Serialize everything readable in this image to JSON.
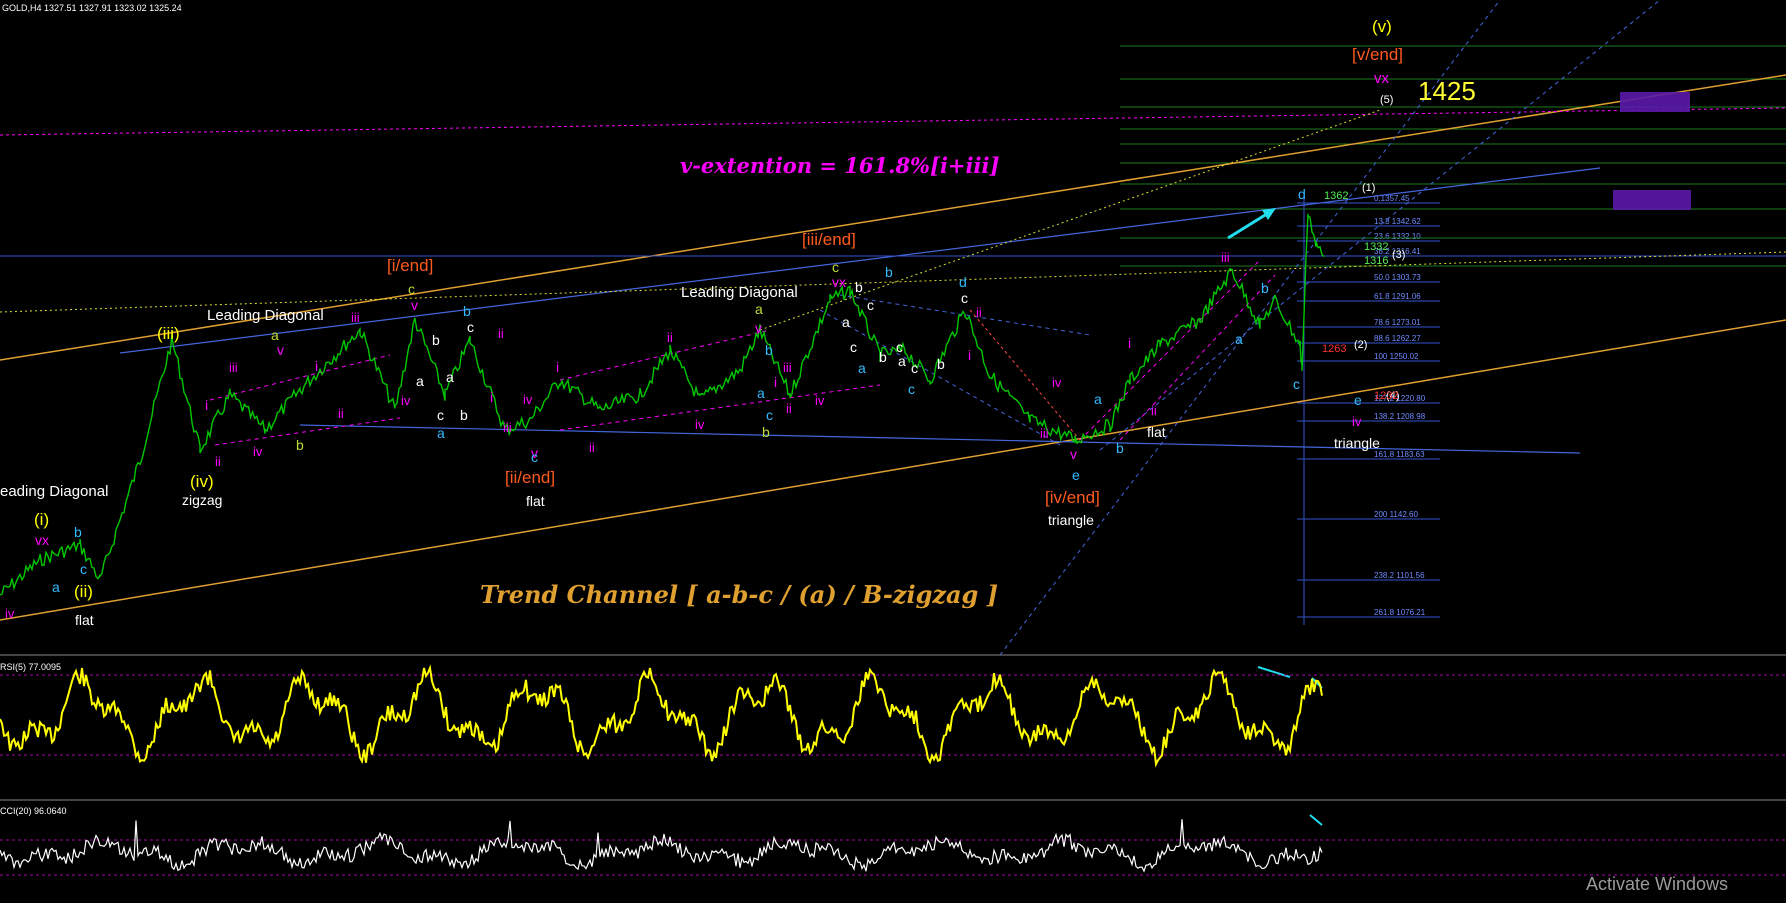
{
  "header": {
    "symbol_line": "GOLD,H4  1327.51 1327.91 1323.02 1325.24",
    "rsi_label": "RSI(5) 77.0095",
    "cci_label": "CCI(20) 96.0640",
    "watermark": "Activate Windows"
  },
  "colors": {
    "background": "#000000",
    "price": "#00c800",
    "channel_orange": "#e0a030",
    "channel_blue": "#4466dd",
    "magenta": "#ff00ff",
    "yellow": "#ffff00",
    "cyan": "#22ddee",
    "orange_red": "#ff5a1e",
    "rsi_line": "#ffff00",
    "cci_line": "#ffffff"
  },
  "annotations": {
    "v_extension": "v-extention = 161.8%[i+iii]",
    "trend_channel": "Trend Channel  [ a-b-c / (a) / B-zigzag ]",
    "target": "1425",
    "leading_diagonal": "Leading Diagonal",
    "leading_diagonal_cut": "eading Diagonal",
    "labels": {
      "i_end": "[i/end]",
      "ii_end": "[ii/end]",
      "iii_end": "[iii/end]",
      "iv_end": "[iv/end]",
      "v_end": "[v/end]",
      "wave_v_paren": "(v)",
      "wave_iii_paren": "(iii)",
      "wave_iv_paren": "(iv)",
      "wave_i_paren": "(i)",
      "wave_ii_paren": "(ii)",
      "zigzag": "zigzag",
      "flat": "flat",
      "triangle": "triangle",
      "vx": "vx",
      "p5": "(5)",
      "p1": "(1)",
      "p2": "(2)",
      "p3": "(3)",
      "p4": "(4)",
      "n1362": "1362",
      "n1332": "1332",
      "n1316": "1316",
      "n1263": "1263",
      "n1232": "1232"
    }
  },
  "fibonacci": {
    "levels": [
      {
        "label": "0.1357.45"
      },
      {
        "label": "13.8 1342.62"
      },
      {
        "label": "23.6 1332.10"
      },
      {
        "label": "38.2 1316.41"
      },
      {
        "label": "50.0 1303.73"
      },
      {
        "label": "61.8 1291.06"
      },
      {
        "label": "78.6 1273.01"
      },
      {
        "label": "88.6 1262.27"
      },
      {
        "label": "100 1250.02"
      },
      {
        "label": "127.2 1220.80"
      },
      {
        "label": "138.2 1208.98"
      },
      {
        "label": "161.8 1183.63"
      },
      {
        "label": "200 1142.60"
      },
      {
        "label": "238.2 1101.56"
      },
      {
        "label": "261.8 1076.21"
      }
    ]
  },
  "chart_data": [
    {
      "type": "line",
      "title": "GOLD,H4",
      "series": [
        {
          "name": "GOLD,H4",
          "last": {
            "open": 1327.51,
            "high": 1327.91,
            "low": 1323.02,
            "close": 1325.24
          }
        }
      ],
      "wave_labels": [
        "(i)",
        "(ii)",
        "(iii)",
        "(iv)",
        "(v)",
        "[i/end]",
        "[ii/end]",
        "[iii/end]",
        "[iv/end]",
        "[v/end]"
      ],
      "target": 1425
    },
    {
      "type": "line",
      "title": "RSI(5)",
      "series": [
        {
          "name": "RSI(5)",
          "last": 77.0095
        }
      ]
    },
    {
      "type": "line",
      "title": "CCI(20)",
      "series": [
        {
          "name": "CCI(20)",
          "last": 96.064
        }
      ]
    }
  ]
}
